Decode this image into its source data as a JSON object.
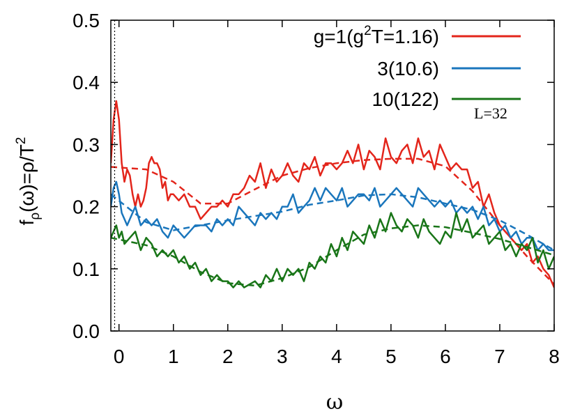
{
  "chart_data": {
    "type": "line",
    "xlabel": "ω",
    "ylabel": "f",
    "ylabel_sub": "ρ",
    "ylabel_rest": "(ω)=ρ/T",
    "ylabel_sup": "2",
    "xlim": [
      -0.15,
      8
    ],
    "ylim": [
      0,
      0.5
    ],
    "xticks": [
      0,
      1,
      2,
      3,
      4,
      5,
      6,
      7,
      8
    ],
    "yticks": [
      "0.0",
      "0.1",
      "0.2",
      "0.3",
      "0.4",
      "0.5"
    ],
    "ytick_values": [
      0,
      0.1,
      0.2,
      0.3,
      0.4,
      0.5
    ],
    "vline_x": -0.08,
    "annotation": "L=32",
    "legend_position": "top-right",
    "series": [
      {
        "legend": {
          "pre": "g=1(g",
          "sup": "2",
          "post": "T=1.16)"
        },
        "color": "#e3251b",
        "x": [
          -0.15,
          -0.1,
          -0.05,
          0,
          0.05,
          0.1,
          0.15,
          0.2,
          0.25,
          0.3,
          0.35,
          0.4,
          0.45,
          0.5,
          0.55,
          0.6,
          0.65,
          0.7,
          0.75,
          0.8,
          0.85,
          0.9,
          0.95,
          1,
          1.1,
          1.2,
          1.3,
          1.4,
          1.5,
          1.6,
          1.7,
          1.8,
          1.9,
          2,
          2.1,
          2.2,
          2.3,
          2.4,
          2.5,
          2.6,
          2.7,
          2.8,
          2.9,
          3,
          3.1,
          3.2,
          3.3,
          3.4,
          3.5,
          3.6,
          3.7,
          3.8,
          3.9,
          4,
          4.1,
          4.2,
          4.3,
          4.4,
          4.5,
          4.6,
          4.7,
          4.8,
          4.9,
          5,
          5.1,
          5.2,
          5.3,
          5.4,
          5.5,
          5.6,
          5.7,
          5.8,
          5.9,
          6,
          6.1,
          6.2,
          6.3,
          6.4,
          6.5,
          6.6,
          6.7,
          6.8,
          6.9,
          7,
          7.1,
          7.2,
          7.3,
          7.4,
          7.5,
          7.6,
          7.7,
          7.8,
          7.9,
          8
        ],
        "y": [
          0.27,
          0.34,
          0.37,
          0.34,
          0.27,
          0.24,
          0.26,
          0.25,
          0.22,
          0.2,
          0.22,
          0.2,
          0.21,
          0.23,
          0.27,
          0.28,
          0.27,
          0.27,
          0.26,
          0.23,
          0.24,
          0.21,
          0.22,
          0.22,
          0.21,
          0.22,
          0.2,
          0.2,
          0.18,
          0.19,
          0.2,
          0.2,
          0.21,
          0.2,
          0.22,
          0.22,
          0.23,
          0.25,
          0.24,
          0.27,
          0.23,
          0.26,
          0.24,
          0.25,
          0.27,
          0.25,
          0.24,
          0.27,
          0.26,
          0.28,
          0.25,
          0.27,
          0.27,
          0.26,
          0.27,
          0.29,
          0.27,
          0.3,
          0.26,
          0.29,
          0.28,
          0.26,
          0.31,
          0.28,
          0.27,
          0.29,
          0.3,
          0.27,
          0.31,
          0.28,
          0.29,
          0.26,
          0.3,
          0.28,
          0.26,
          0.27,
          0.26,
          0.26,
          0.23,
          0.24,
          0.2,
          0.22,
          0.19,
          0.17,
          0.16,
          0.15,
          0.14,
          0.13,
          0.14,
          0.11,
          0.12,
          0.1,
          0.09,
          0.07
        ],
        "fit_x": [
          -0.15,
          0.5,
          1,
          1.5,
          2,
          2.5,
          3,
          3.5,
          4,
          4.5,
          5,
          5.5,
          6,
          6.5,
          7,
          7.5,
          8
        ],
        "fit_y": [
          0.264,
          0.26,
          0.24,
          0.205,
          0.205,
          0.228,
          0.25,
          0.262,
          0.27,
          0.275,
          0.277,
          0.277,
          0.265,
          0.225,
          0.17,
          0.12,
          0.075
        ]
      },
      {
        "legend": {
          "pre": "3(10.6)",
          "sup": "",
          "post": ""
        },
        "color": "#1a76bc",
        "x": [
          -0.15,
          -0.1,
          -0.05,
          0,
          0.05,
          0.1,
          0.15,
          0.2,
          0.3,
          0.4,
          0.5,
          0.6,
          0.7,
          0.8,
          0.9,
          1,
          1.1,
          1.2,
          1.3,
          1.4,
          1.5,
          1.6,
          1.7,
          1.8,
          1.9,
          2,
          2.1,
          2.2,
          2.3,
          2.4,
          2.5,
          2.6,
          2.7,
          2.8,
          2.9,
          3,
          3.1,
          3.2,
          3.3,
          3.4,
          3.5,
          3.6,
          3.7,
          3.8,
          3.9,
          4,
          4.1,
          4.2,
          4.3,
          4.4,
          4.5,
          4.6,
          4.7,
          4.8,
          4.9,
          5,
          5.1,
          5.2,
          5.3,
          5.4,
          5.5,
          5.6,
          5.7,
          5.8,
          5.9,
          6,
          6.1,
          6.2,
          6.3,
          6.4,
          6.5,
          6.6,
          6.7,
          6.8,
          6.9,
          7,
          7.1,
          7.2,
          7.3,
          7.4,
          7.5,
          7.6,
          7.7,
          7.8,
          7.9,
          8
        ],
        "y": [
          0.2,
          0.23,
          0.24,
          0.22,
          0.19,
          0.18,
          0.17,
          0.18,
          0.2,
          0.17,
          0.18,
          0.17,
          0.18,
          0.16,
          0.15,
          0.17,
          0.16,
          0.15,
          0.16,
          0.17,
          0.17,
          0.17,
          0.16,
          0.18,
          0.17,
          0.18,
          0.17,
          0.2,
          0.19,
          0.18,
          0.17,
          0.19,
          0.18,
          0.19,
          0.18,
          0.2,
          0.2,
          0.22,
          0.19,
          0.2,
          0.21,
          0.23,
          0.21,
          0.23,
          0.22,
          0.21,
          0.23,
          0.2,
          0.21,
          0.22,
          0.22,
          0.21,
          0.23,
          0.2,
          0.21,
          0.22,
          0.23,
          0.22,
          0.21,
          0.2,
          0.23,
          0.22,
          0.21,
          0.2,
          0.21,
          0.2,
          0.21,
          0.19,
          0.2,
          0.19,
          0.2,
          0.18,
          0.2,
          0.17,
          0.18,
          0.16,
          0.17,
          0.15,
          0.16,
          0.14,
          0.15,
          0.15,
          0.13,
          0.14,
          0.13,
          0.13
        ],
        "fit_x": [
          -0.15,
          0.5,
          1,
          1.5,
          2,
          2.5,
          3,
          3.5,
          4,
          4.5,
          5,
          5.5,
          6,
          6.5,
          7,
          7.5,
          8
        ],
        "fit_y": [
          0.22,
          0.175,
          0.162,
          0.17,
          0.178,
          0.185,
          0.192,
          0.203,
          0.21,
          0.218,
          0.22,
          0.215,
          0.205,
          0.195,
          0.178,
          0.155,
          0.13
        ]
      },
      {
        "legend": {
          "pre": "10(122)",
          "sup": "",
          "post": ""
        },
        "color": "#197518",
        "x": [
          -0.15,
          -0.1,
          -0.05,
          0,
          0.05,
          0.1,
          0.2,
          0.3,
          0.4,
          0.5,
          0.6,
          0.7,
          0.8,
          0.9,
          1,
          1.1,
          1.2,
          1.3,
          1.4,
          1.5,
          1.6,
          1.7,
          1.8,
          1.9,
          2,
          2.1,
          2.2,
          2.3,
          2.4,
          2.5,
          2.6,
          2.7,
          2.8,
          2.9,
          3,
          3.1,
          3.2,
          3.3,
          3.4,
          3.5,
          3.6,
          3.7,
          3.8,
          3.9,
          4,
          4.1,
          4.2,
          4.3,
          4.4,
          4.5,
          4.6,
          4.7,
          4.8,
          4.9,
          5,
          5.1,
          5.2,
          5.3,
          5.4,
          5.5,
          5.6,
          5.7,
          5.8,
          5.9,
          6,
          6.1,
          6.2,
          6.3,
          6.4,
          6.5,
          6.6,
          6.7,
          6.8,
          6.9,
          7,
          7.1,
          7.2,
          7.3,
          7.4,
          7.5,
          7.6,
          7.7,
          7.8,
          7.9,
          8
        ],
        "y": [
          0.15,
          0.16,
          0.17,
          0.15,
          0.16,
          0.14,
          0.15,
          0.16,
          0.13,
          0.15,
          0.14,
          0.12,
          0.13,
          0.12,
          0.13,
          0.11,
          0.12,
          0.1,
          0.11,
          0.09,
          0.1,
          0.08,
          0.09,
          0.08,
          0.08,
          0.07,
          0.08,
          0.07,
          0.075,
          0.08,
          0.07,
          0.09,
          0.08,
          0.1,
          0.08,
          0.1,
          0.09,
          0.1,
          0.08,
          0.11,
          0.1,
          0.12,
          0.11,
          0.14,
          0.12,
          0.15,
          0.13,
          0.16,
          0.15,
          0.14,
          0.17,
          0.15,
          0.18,
          0.16,
          0.19,
          0.17,
          0.16,
          0.18,
          0.17,
          0.15,
          0.18,
          0.16,
          0.15,
          0.14,
          0.16,
          0.15,
          0.19,
          0.16,
          0.18,
          0.15,
          0.16,
          0.17,
          0.14,
          0.15,
          0.16,
          0.13,
          0.14,
          0.12,
          0.14,
          0.13,
          0.15,
          0.11,
          0.13,
          0.1,
          0.12
        ],
        "fit_x": [
          -0.15,
          0.5,
          1,
          1.5,
          2,
          2.5,
          3,
          3.5,
          4,
          4.5,
          5,
          5.5,
          6,
          6.5,
          7,
          7.5,
          8
        ],
        "fit_y": [
          0.15,
          0.138,
          0.12,
          0.095,
          0.077,
          0.073,
          0.085,
          0.103,
          0.13,
          0.155,
          0.165,
          0.17,
          0.167,
          0.158,
          0.148,
          0.135,
          0.122
        ]
      }
    ]
  }
}
